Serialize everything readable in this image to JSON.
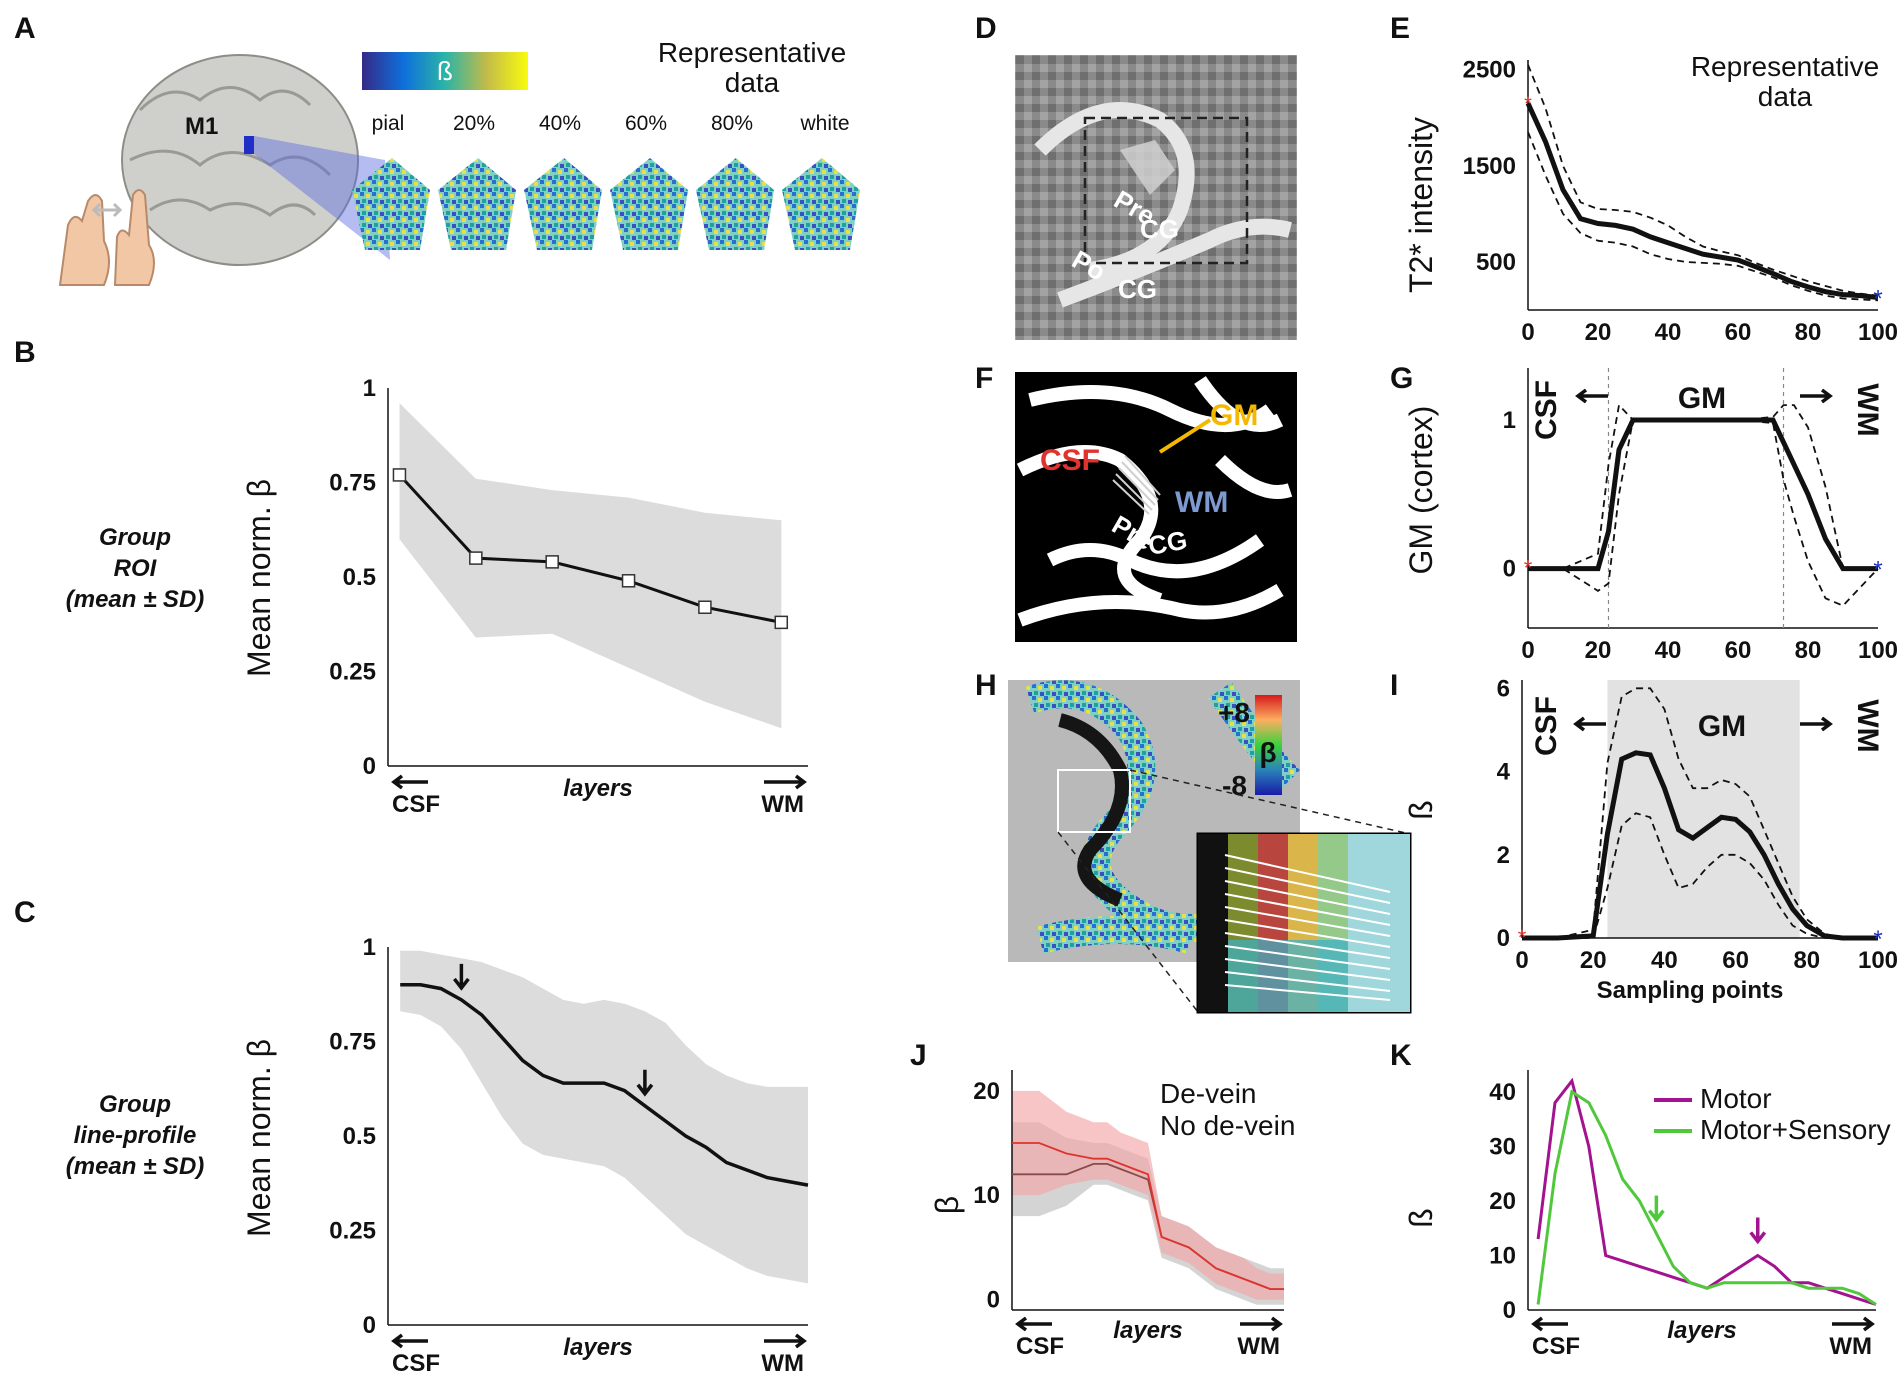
{
  "panels": {
    "A": {
      "label": "A",
      "region_label": "M1",
      "colorbar_symbol": "ß",
      "title": "Representative data",
      "layers": [
        "pial",
        "20%",
        "40%",
        "60%",
        "80%",
        "white"
      ]
    },
    "B": {
      "label": "B",
      "side_title": [
        "Group",
        "ROI",
        "(mean ± SD)"
      ]
    },
    "C": {
      "label": "C",
      "side_title": [
        "Group",
        "line-profile",
        "(mean ± SD)"
      ]
    },
    "D": {
      "label": "D",
      "text1": "Pre",
      "text2": "CG",
      "text3": "Po",
      "text4": "CG"
    },
    "E": {
      "label": "E",
      "note": "Representative data"
    },
    "F": {
      "label": "F",
      "csf": "CSF",
      "gm": "GM",
      "wm": "WM",
      "pre": "Pre",
      "cg": "CG"
    },
    "G": {
      "label": "G",
      "left": "CSF",
      "mid": "GM",
      "right": "WM"
    },
    "H": {
      "label": "H",
      "cb_top": "+8",
      "cb_bottom": "-8",
      "cb_symbol": "β"
    },
    "I": {
      "label": "I",
      "left": "CSF",
      "mid": "GM",
      "right": "WM"
    },
    "J": {
      "label": "J"
    },
    "K": {
      "label": "K"
    }
  },
  "colors": {
    "black": "#111111",
    "band": "#dcdcdc",
    "red": "#e0332e",
    "pink": "#f2a6a6",
    "magenta": "#a3128f",
    "green": "#4fc93b",
    "gold": "#f5b800",
    "wmblue": "#7f9ad1"
  },
  "chart_data": [
    {
      "id": "B",
      "type": "line",
      "title": "",
      "xlabel": "layers",
      "x_left": "CSF",
      "x_right": "WM",
      "ylabel": "Mean norm. β",
      "ylim": [
        0,
        1
      ],
      "yticks": [
        0,
        0.25,
        0.5,
        0.75,
        1
      ],
      "ytick_labels": [
        "0",
        "0.25",
        "0.5",
        "0.75",
        "1"
      ],
      "x": [
        0,
        1,
        2,
        3,
        4,
        5
      ],
      "series": [
        {
          "name": "Group ROI mean",
          "values": [
            0.77,
            0.55,
            0.54,
            0.49,
            0.42,
            0.38
          ],
          "lower": [
            0.6,
            0.34,
            0.35,
            0.26,
            0.17,
            0.1
          ],
          "upper": [
            0.96,
            0.76,
            0.73,
            0.71,
            0.67,
            0.65
          ]
        }
      ]
    },
    {
      "id": "C",
      "type": "line",
      "xlabel": "layers",
      "x_left": "CSF",
      "x_right": "WM",
      "ylabel": "Mean norm. β",
      "ylim": [
        0,
        1
      ],
      "yticks": [
        0,
        0.25,
        0.5,
        0.75,
        1
      ],
      "ytick_labels": [
        "0",
        "0.25",
        "0.5",
        "0.75",
        "1"
      ],
      "x": [
        0,
        0.05,
        0.1,
        0.15,
        0.2,
        0.25,
        0.3,
        0.35,
        0.4,
        0.45,
        0.5,
        0.55,
        0.6,
        0.65,
        0.7,
        0.75,
        0.8,
        0.85,
        0.9,
        0.95,
        1
      ],
      "series": [
        {
          "name": "Group line-profile mean",
          "values": [
            0.9,
            0.9,
            0.89,
            0.86,
            0.82,
            0.76,
            0.7,
            0.66,
            0.64,
            0.64,
            0.64,
            0.62,
            0.58,
            0.54,
            0.5,
            0.47,
            0.43,
            0.41,
            0.39,
            0.38,
            0.37
          ],
          "lower": [
            0.83,
            0.82,
            0.79,
            0.73,
            0.64,
            0.55,
            0.48,
            0.45,
            0.44,
            0.43,
            0.42,
            0.39,
            0.34,
            0.29,
            0.24,
            0.21,
            0.18,
            0.15,
            0.13,
            0.12,
            0.11
          ],
          "upper": [
            0.99,
            0.99,
            0.98,
            0.97,
            0.96,
            0.94,
            0.92,
            0.89,
            0.86,
            0.85,
            0.86,
            0.85,
            0.83,
            0.8,
            0.74,
            0.69,
            0.66,
            0.64,
            0.63,
            0.63,
            0.63
          ]
        }
      ],
      "arrows": [
        0.15,
        0.6
      ]
    },
    {
      "id": "E",
      "type": "line",
      "ylabel": "T2* intensity",
      "xlim": [
        0,
        100
      ],
      "ylim": [
        0,
        2600
      ],
      "xticks": [
        0,
        20,
        40,
        60,
        80,
        100
      ],
      "xtick_labels": [
        "0",
        "20",
        "40",
        "60",
        "80",
        "100"
      ],
      "yticks": [
        500,
        1500,
        2500
      ],
      "ytick_labels": [
        "500",
        "1500",
        "2500"
      ],
      "x": [
        0,
        5,
        10,
        15,
        20,
        25,
        30,
        35,
        40,
        45,
        50,
        55,
        60,
        65,
        70,
        75,
        80,
        85,
        90,
        95,
        100
      ],
      "series": [
        {
          "name": "mean",
          "values": [
            2150,
            1750,
            1250,
            950,
            900,
            880,
            840,
            760,
            700,
            640,
            580,
            550,
            520,
            450,
            380,
            300,
            240,
            190,
            160,
            150,
            130
          ]
        },
        {
          "name": "upper",
          "values": [
            2550,
            2100,
            1500,
            1120,
            1050,
            1040,
            1020,
            960,
            880,
            760,
            660,
            610,
            570,
            490,
            420,
            360,
            300,
            250,
            200,
            170,
            150
          ]
        },
        {
          "name": "lower",
          "values": [
            1850,
            1400,
            1000,
            800,
            720,
            700,
            660,
            580,
            530,
            500,
            490,
            480,
            460,
            400,
            340,
            260,
            200,
            150,
            120,
            110,
            100
          ]
        }
      ]
    },
    {
      "id": "G",
      "type": "line",
      "ylabel": "GM (cortex)",
      "xlim": [
        0,
        100
      ],
      "ylim": [
        -0.4,
        1.35
      ],
      "xticks": [
        0,
        20,
        40,
        60,
        80,
        100
      ],
      "xtick_labels": [
        "0",
        "20",
        "40",
        "60",
        "80",
        "100"
      ],
      "yticks": [
        0,
        1
      ],
      "ytick_labels": [
        "0",
        "1"
      ],
      "vlines": [
        23,
        73
      ],
      "x": [
        0,
        10,
        20,
        23,
        26,
        30,
        40,
        50,
        60,
        70,
        73,
        76,
        80,
        85,
        90,
        100
      ],
      "series": [
        {
          "name": "mean",
          "values": [
            0,
            0,
            0,
            0.25,
            0.8,
            1,
            1,
            1,
            1,
            1,
            0.85,
            0.7,
            0.5,
            0.2,
            0,
            0
          ]
        },
        {
          "name": "upper",
          "values": [
            0,
            0,
            0.1,
            0.7,
            1.1,
            1.0,
            1,
            1,
            1,
            1.02,
            1.1,
            1.1,
            0.95,
            0.55,
            0,
            0
          ]
        },
        {
          "name": "lower",
          "values": [
            0,
            0,
            -0.15,
            -0.1,
            0.5,
            1.0,
            1,
            1,
            1,
            0.98,
            0.6,
            0.35,
            0.05,
            -0.2,
            -0.25,
            0
          ]
        }
      ]
    },
    {
      "id": "I",
      "type": "line",
      "ylabel": "ß",
      "xlabel": "Sampling points",
      "xlim": [
        0,
        100
      ],
      "ylim": [
        0,
        6.2
      ],
      "xticks": [
        0,
        20,
        40,
        60,
        80,
        100
      ],
      "xtick_labels": [
        "0",
        "20",
        "40",
        "60",
        "80",
        "100"
      ],
      "yticks": [
        0,
        2,
        4,
        6
      ],
      "ytick_labels": [
        "0",
        "2",
        "4",
        "6"
      ],
      "gm_band": [
        24,
        78
      ],
      "x": [
        0,
        10,
        20,
        24,
        28,
        32,
        36,
        40,
        44,
        48,
        52,
        56,
        60,
        64,
        68,
        72,
        76,
        80,
        85,
        90,
        100
      ],
      "series": [
        {
          "name": "mean",
          "values": [
            0,
            0,
            0.05,
            2.5,
            4.3,
            4.45,
            4.4,
            3.6,
            2.6,
            2.4,
            2.65,
            2.9,
            2.85,
            2.55,
            2.0,
            1.3,
            0.7,
            0.3,
            0.05,
            0,
            0
          ]
        },
        {
          "name": "upper",
          "values": [
            0,
            0,
            0.2,
            4.2,
            5.8,
            6.0,
            6.0,
            5.5,
            4.3,
            3.6,
            3.6,
            3.8,
            3.7,
            3.4,
            2.6,
            1.8,
            1.0,
            0.45,
            0.1,
            0,
            0
          ]
        },
        {
          "name": "lower",
          "values": [
            0,
            0,
            0,
            1.2,
            2.7,
            3.0,
            2.9,
            2.0,
            1.2,
            1.3,
            1.7,
            2.0,
            2.0,
            1.8,
            1.4,
            0.8,
            0.3,
            0.1,
            0,
            0,
            0
          ]
        }
      ]
    },
    {
      "id": "J",
      "type": "line",
      "ylabel": "β",
      "xlabel": "layers",
      "x_left": "CSF",
      "x_right": "WM",
      "ylim": [
        -1,
        22
      ],
      "yticks": [
        0,
        10,
        20
      ],
      "ytick_labels": [
        "0",
        "10",
        "20"
      ],
      "legend": [
        "De-vein",
        "No de-vein"
      ],
      "x": [
        0,
        0.1,
        0.2,
        0.3,
        0.35,
        0.4,
        0.45,
        0.5,
        0.55,
        0.6,
        0.65,
        0.7,
        0.75,
        0.8,
        0.85,
        0.9,
        0.95,
        1
      ],
      "series": [
        {
          "name": "De-vein",
          "values": [
            12,
            12,
            12,
            13,
            13,
            12.5,
            12,
            11.5,
            6,
            5.5,
            5,
            4,
            3,
            2.5,
            2,
            1.5,
            1,
            1
          ]
        },
        {
          "name": "No de-vein",
          "values": [
            15,
            15,
            14,
            13.5,
            13.5,
            13,
            12.5,
            12,
            6,
            5.5,
            5,
            4,
            3,
            2.5,
            2,
            1.5,
            1,
            1
          ]
        }
      ],
      "bands": [
        {
          "lower": [
            8,
            8,
            9,
            11,
            11,
            10.5,
            10,
            9.5,
            4,
            3.5,
            3,
            2,
            1,
            0.5,
            0,
            -0.5,
            -0.5,
            -0.5
          ],
          "upper": [
            17,
            17,
            15.5,
            15,
            15,
            14.5,
            14,
            13.5,
            8,
            7.5,
            7,
            6,
            5,
            4.5,
            4,
            3.5,
            3,
            3
          ]
        },
        {
          "lower": [
            10,
            10,
            11,
            11.5,
            11.5,
            11,
            10.5,
            10,
            4.5,
            4,
            3.5,
            2.5,
            1.5,
            1,
            0.5,
            0,
            0,
            0
          ],
          "upper": [
            20,
            20,
            18,
            17,
            17,
            16,
            15.5,
            15,
            8,
            7.5,
            7,
            6,
            5,
            4.5,
            4,
            3,
            2.5,
            2.5
          ]
        }
      ]
    },
    {
      "id": "K",
      "type": "line",
      "ylabel": "ß",
      "xlabel": "layers",
      "x_left": "CSF",
      "x_right": "WM",
      "ylim": [
        0,
        44
      ],
      "yticks": [
        0,
        10,
        20,
        30,
        40
      ],
      "ytick_labels": [
        "0",
        "10",
        "20",
        "30",
        "40"
      ],
      "legend": [
        "Motor",
        "Motor+Sensory"
      ],
      "x": [
        0,
        0.05,
        0.1,
        0.15,
        0.2,
        0.25,
        0.3,
        0.35,
        0.4,
        0.45,
        0.5,
        0.55,
        0.6,
        0.65,
        0.7,
        0.75,
        0.8,
        0.85,
        0.9,
        0.95,
        1
      ],
      "series": [
        {
          "name": "Motor",
          "values": [
            13,
            38,
            42,
            30,
            10,
            9,
            8,
            7,
            6,
            5,
            4,
            6,
            8,
            10,
            8,
            5,
            5,
            4,
            3,
            2,
            1
          ]
        },
        {
          "name": "Motor+Sensory",
          "values": [
            1,
            25,
            40,
            38,
            32,
            24,
            20,
            14,
            8,
            5,
            4,
            5,
            5,
            5,
            5,
            5,
            4,
            4,
            4,
            3,
            1
          ]
        }
      ],
      "arrows": [
        {
          "series": "Motor+Sensory",
          "x": 0.35
        },
        {
          "series": "Motor",
          "x": 0.65
        }
      ]
    }
  ]
}
